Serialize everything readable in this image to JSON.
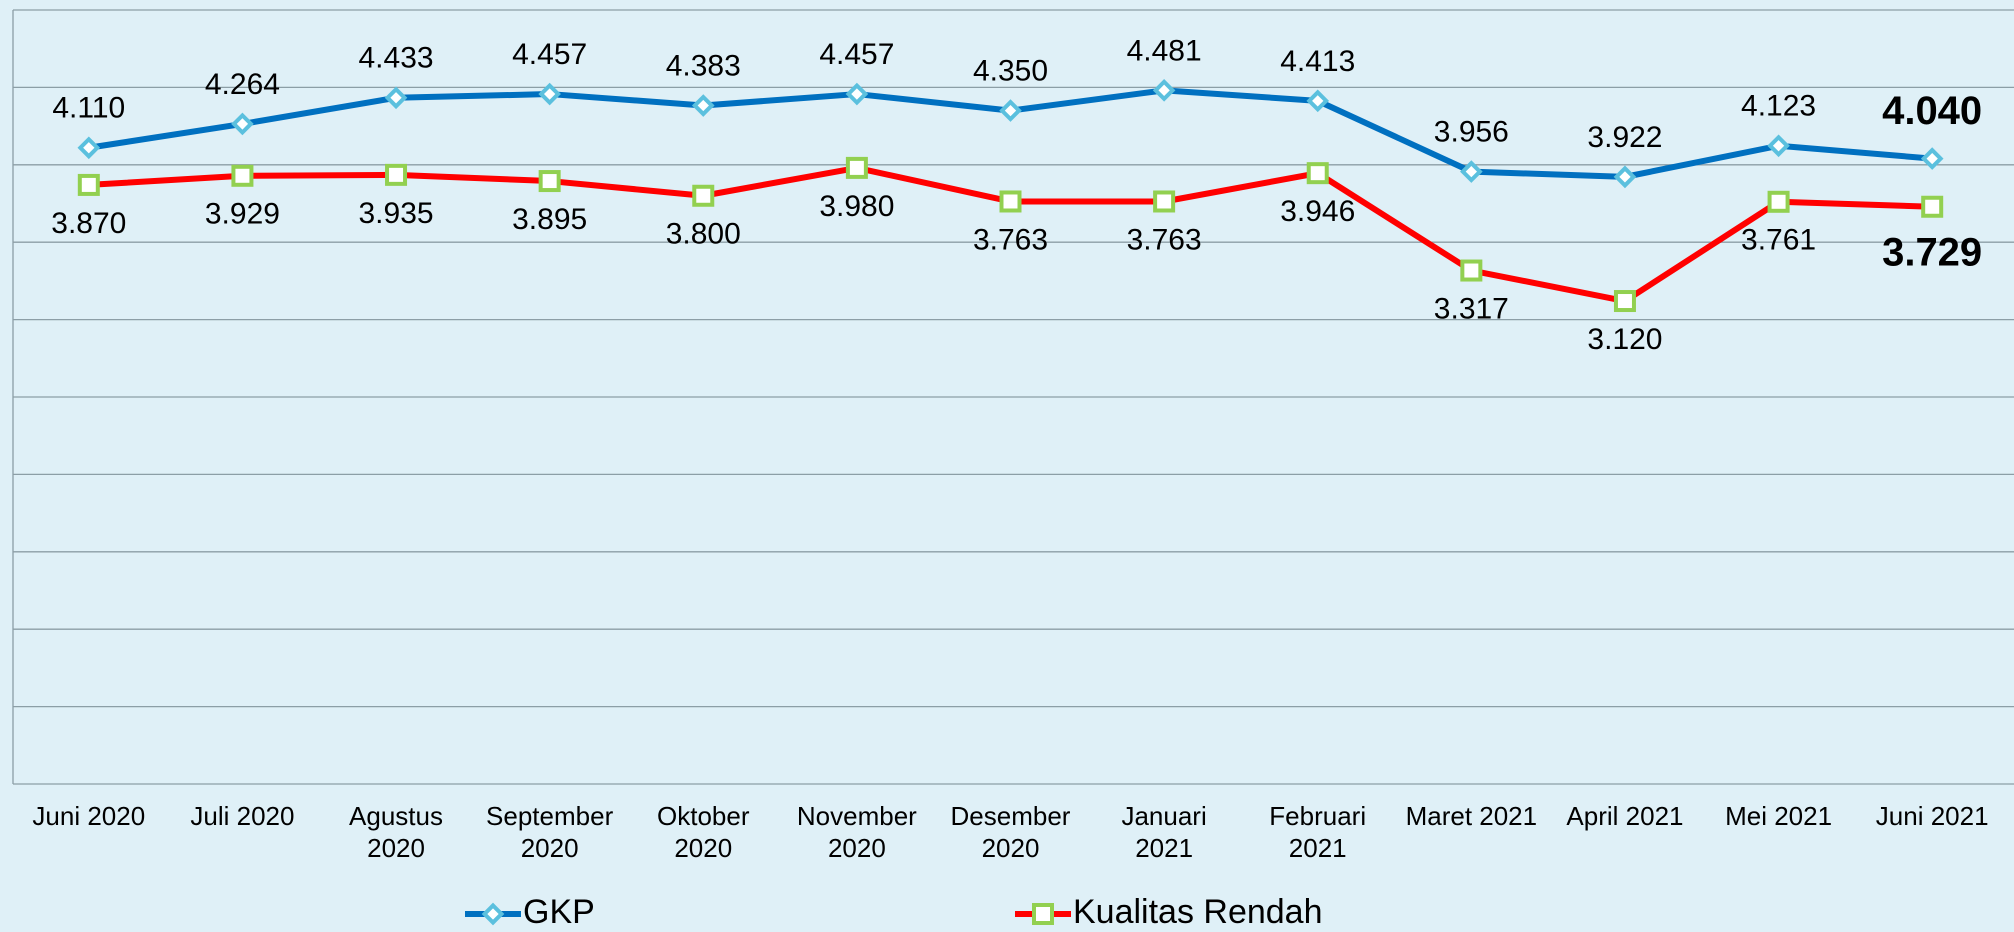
{
  "chart_data": {
    "type": "line",
    "categories": [
      "Juni 2020",
      "Juli 2020",
      "Agustus\n2020",
      "September\n2020",
      "Oktober\n2020",
      "November\n2020",
      "Desember\n2020",
      "Januari\n2021",
      "Februari\n2021",
      "Maret 2021",
      "April 2021",
      "Mei 2021",
      "Juni 2021"
    ],
    "series": [
      {
        "name": "GKP",
        "color": "#0070c0",
        "marker_color": "#5bc0de",
        "marker": "diamond",
        "values": [
          4.11,
          4.264,
          4.433,
          4.457,
          4.383,
          4.457,
          4.35,
          4.481,
          4.413,
          3.956,
          3.922,
          4.123,
          4.04
        ],
        "value_labels": [
          "4.110",
          "4.264",
          "4.433",
          "4.457",
          "4.383",
          "4.457",
          "4.350",
          "4.481",
          "4.413",
          "3.956",
          "3.922",
          "4.123",
          "4.040"
        ]
      },
      {
        "name": "Kualitas Rendah",
        "color": "#ff0000",
        "marker_color": "#92d050",
        "marker": "square",
        "values": [
          3.87,
          3.929,
          3.935,
          3.895,
          3.8,
          3.98,
          3.763,
          3.763,
          3.946,
          3.317,
          3.12,
          3.761,
          3.729
        ],
        "value_labels": [
          "3.870",
          "3.929",
          "3.935",
          "3.895",
          "3.800",
          "3.980",
          "3.763",
          "3.763",
          "3.946",
          "3.317",
          "3.120",
          "3.761",
          "3.729"
        ]
      }
    ],
    "ylim": [
      0,
      5
    ],
    "yticks": [
      0,
      0.5,
      1,
      1.5,
      2,
      2.5,
      3,
      3.5,
      4,
      4.5,
      5
    ],
    "grid": true,
    "legend": "bottom"
  }
}
